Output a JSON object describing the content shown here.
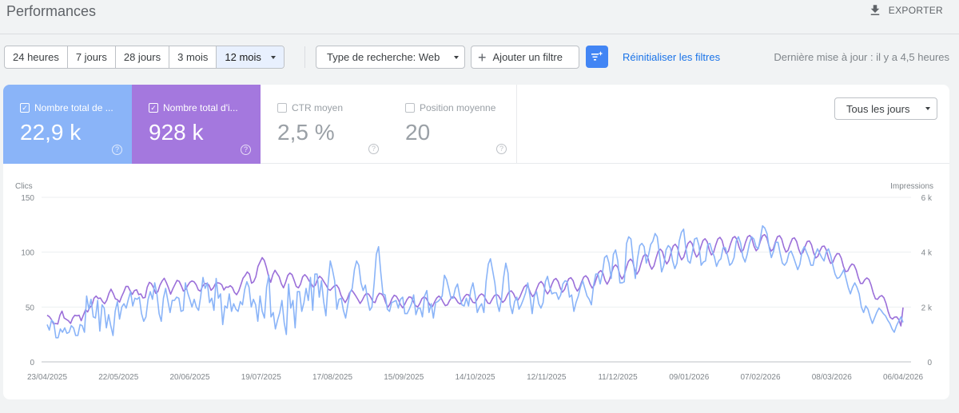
{
  "header": {
    "title": "Performances",
    "export_label": "EXPORTER"
  },
  "date_range": {
    "options": [
      "24 heures",
      "7 jours",
      "28 jours",
      "3 mois",
      "12 mois"
    ],
    "selected": "12 mois"
  },
  "filters": {
    "search_type": "Type de recherche: Web",
    "add_filter": "Ajouter un filtre",
    "reset": "Réinitialiser les filtres",
    "last_update": "Dernière mise à jour : il y a 4,5 heures"
  },
  "metrics": [
    {
      "label": "Nombre total de ...",
      "value": "22,9 k",
      "checked": true,
      "color": "#8ab4f8"
    },
    {
      "label": "Nombre total d'i...",
      "value": "928 k",
      "checked": true,
      "color": "#a478de"
    },
    {
      "label": "CTR moyen",
      "value": "2,5 %",
      "checked": false
    },
    {
      "label": "Position moyenne",
      "value": "20",
      "checked": false
    }
  ],
  "days_filter": "Tous les jours",
  "colors": {
    "clicks": "#8ab4f8",
    "impressions": "#9b6fd9",
    "accent": "#1a73e8"
  },
  "chart_data": {
    "type": "line",
    "left_axis_label": "Clics",
    "right_axis_label": "Impressions",
    "left_ticks": [
      "150",
      "100",
      "50",
      "0"
    ],
    "right_ticks": [
      "6 k",
      "4 k",
      "2 k",
      "0"
    ],
    "ylim_left": [
      0,
      150
    ],
    "ylim_right": [
      0,
      6000
    ],
    "x_ticks": [
      "23/04/2025",
      "22/05/2025",
      "20/06/2025",
      "19/07/2025",
      "17/08/2025",
      "15/09/2025",
      "14/10/2025",
      "12/11/2025",
      "11/12/2025",
      "09/01/2026",
      "07/02/2026",
      "08/03/2026",
      "06/04/2026"
    ],
    "series": [
      {
        "name": "Clics",
        "axis": "left",
        "color": "#8ab4f8",
        "values": [
          34,
          29,
          38,
          36,
          22,
          22,
          30,
          27,
          31,
          26,
          27,
          33,
          31,
          24,
          24,
          34,
          33,
          27,
          60,
          48,
          57,
          41,
          40,
          56,
          28,
          52,
          49,
          31,
          43,
          33,
          24,
          46,
          55,
          39,
          50,
          53,
          49,
          57,
          64,
          51,
          58,
          57,
          59,
          44,
          37,
          41,
          57,
          64,
          57,
          72,
          62,
          44,
          37,
          58,
          67,
          56,
          45,
          56,
          56,
          59,
          58,
          46,
          47,
          72,
          63,
          57,
          50,
          57,
          50,
          47,
          60,
          77,
          67,
          72,
          54,
          58,
          47,
          76,
          58,
          62,
          34,
          51,
          49,
          62,
          46,
          53,
          48,
          46,
          55,
          52,
          66,
          73,
          68,
          50,
          57,
          52,
          37,
          60,
          46,
          40,
          68,
          79,
          41,
          45,
          30,
          38,
          45,
          56,
          36,
          25,
          71,
          49,
          56,
          31,
          64,
          64,
          46,
          54,
          67,
          56,
          77,
          47,
          80,
          80,
          59,
          74,
          55,
          42,
          71,
          92,
          84,
          74,
          48,
          57,
          58,
          47,
          40,
          52,
          63,
          67,
          84,
          92,
          88,
          72,
          65,
          70,
          57,
          47,
          50,
          72,
          98,
          105,
          82,
          62,
          61,
          48,
          46,
          54,
          55,
          56,
          49,
          57,
          59,
          44,
          44,
          48,
          53,
          61,
          43,
          49,
          49,
          41,
          60,
          65,
          45,
          53,
          40,
          54,
          55,
          57,
          60,
          79,
          75,
          67,
          58,
          58,
          67,
          71,
          60,
          52,
          51,
          58,
          51,
          65,
          72,
          61,
          45,
          50,
          53,
          45,
          73,
          89,
          94,
          83,
          72,
          54,
          46,
          57,
          77,
          90,
          81,
          52,
          44,
          55,
          59,
          48,
          52,
          57,
          63,
          72,
          60,
          44,
          60,
          64,
          53,
          49,
          54,
          73,
          78,
          68,
          62,
          63,
          63,
          57,
          61,
          71,
          74,
          73,
          59,
          61,
          46,
          54,
          60,
          68,
          74,
          67,
          60,
          57,
          52,
          70,
          80,
          80,
          71,
          81,
          95,
          97,
          90,
          76,
          98,
          102,
          92,
          72,
          72,
          73,
          108,
          114,
          112,
          93,
          76,
          94,
          106,
          108,
          105,
          90,
          97,
          107,
          110,
          117,
          114,
          98,
          82,
          88,
          102,
          106,
          104,
          92,
          85,
          90,
          110,
          118,
          121,
          104,
          92,
          90,
          100,
          112,
          113,
          106,
          88,
          91,
          92,
          107,
          108,
          101,
          96,
          87,
          92,
          94,
          104,
          104,
          97,
          88,
          90,
          95,
          110,
          114,
          108,
          96,
          91,
          98,
          108,
          114,
          112,
          105,
          103,
          113,
          124,
          122,
          117,
          104,
          95,
          101,
          109,
          109,
          99,
          90,
          88,
          91,
          99,
          101,
          96,
          90,
          84,
          89,
          101,
          105,
          100,
          95,
          88,
          88,
          98,
          103,
          99,
          95,
          92,
          100,
          103,
          97,
          88,
          80,
          76,
          77,
          80,
          84,
          76,
          68,
          62,
          68,
          72,
          68,
          62,
          50,
          45,
          51,
          48,
          41,
          35,
          40,
          45,
          49,
          47,
          44,
          42,
          38,
          35,
          30,
          27,
          33,
          37,
          41,
          36
        ]
      },
      {
        "name": "Impressions",
        "axis": "right",
        "color": "#9b6fd9",
        "values": [
          1700,
          1650,
          1550,
          1380,
          1400,
          1380,
          1700,
          1850,
          1600,
          1550,
          1500,
          1400,
          1600,
          1700,
          1680,
          1700,
          1500,
          1700,
          1900,
          1820,
          1980,
          2050,
          2320,
          2400,
          2310,
          2330,
          2200,
          2120,
          2250,
          2500,
          2650,
          2500,
          2300,
          2270,
          2180,
          2380,
          2550,
          2750,
          2750,
          2590,
          2460,
          2600,
          2630,
          2450,
          2480,
          2330,
          2350,
          2720,
          2900,
          2850,
          2700,
          2500,
          2560,
          2800,
          2950,
          3050,
          2890,
          2690,
          2470,
          2660,
          2820,
          2970,
          2940,
          2780,
          2580,
          2640,
          2780,
          2900,
          2950,
          2920,
          2810,
          2620,
          2580,
          2760,
          2850,
          2860,
          2800,
          2610,
          2690,
          2850,
          2880,
          2870,
          2810,
          2620,
          2730,
          2720,
          2780,
          2710,
          2530,
          2450,
          2590,
          2810,
          3050,
          3150,
          3280,
          3200,
          2870,
          2920,
          3100,
          3480,
          3640,
          3800,
          3700,
          3440,
          3120,
          2900,
          3180,
          3340,
          3220,
          3100,
          2850,
          2700,
          2900,
          3150,
          3240,
          3180,
          2980,
          2750,
          2700,
          2830,
          3100,
          3180,
          3100,
          2960,
          2850,
          2730,
          2800,
          3020,
          3120,
          3050,
          2920,
          2800,
          2650,
          2610,
          2700,
          2780,
          2800,
          2680,
          2430,
          2290,
          2160,
          2300,
          2510,
          2620,
          2520,
          2400,
          2270,
          2130,
          2250,
          2410,
          2500,
          2470,
          2350,
          2190,
          2160,
          2370,
          2500,
          2480,
          2390,
          2160,
          1990,
          2110,
          2310,
          2430,
          2390,
          2260,
          2080,
          1970,
          2110,
          2270,
          2370,
          2350,
          2200,
          2050,
          2000,
          2120,
          2300,
          2370,
          2320,
          2180,
          2040,
          2020,
          2190,
          2330,
          2400,
          2330,
          2180,
          2050,
          2080,
          2230,
          2360,
          2380,
          2290,
          2160,
          2110,
          2240,
          2380,
          2460,
          2440,
          2300,
          2170,
          2150,
          2290,
          2420,
          2480,
          2430,
          2280,
          2140,
          2130,
          2280,
          2410,
          2460,
          2410,
          2270,
          2170,
          2250,
          2420,
          2560,
          2590,
          2490,
          2320,
          2240,
          2360,
          2550,
          2730,
          2800,
          2720,
          2520,
          2380,
          2470,
          2680,
          2860,
          2930,
          2830,
          2610,
          2480,
          2590,
          2820,
          2990,
          3040,
          2930,
          2690,
          2540,
          2640,
          2860,
          3030,
          3070,
          2960,
          2720,
          2580,
          2690,
          2910,
          3090,
          3140,
          3050,
          2830,
          2690,
          2800,
          3050,
          3260,
          3330,
          3240,
          2980,
          2830,
          2970,
          3230,
          3460,
          3540,
          3450,
          3170,
          3020,
          3150,
          3430,
          3660,
          3750,
          3660,
          3360,
          3200,
          3330,
          3610,
          3850,
          3930,
          3840,
          3540,
          3380,
          3500,
          3790,
          4030,
          4110,
          4020,
          3730,
          3570,
          3690,
          3980,
          4220,
          4290,
          4180,
          3890,
          3720,
          3820,
          4100,
          4320,
          4400,
          4300,
          4000,
          3820,
          3920,
          4190,
          4420,
          4490,
          4380,
          4080,
          3900,
          3990,
          4260,
          4480,
          4540,
          4430,
          4130,
          3950,
          4040,
          4310,
          4520,
          4570,
          4460,
          4180,
          4000,
          4090,
          4360,
          4560,
          4610,
          4500,
          4220,
          4050,
          4140,
          4400,
          4600,
          4640,
          4520,
          4230,
          4040,
          4110,
          4360,
          4560,
          4600,
          4480,
          4190,
          4000,
          4070,
          4300,
          4490,
          4520,
          4390,
          4100,
          3920,
          3990,
          4210,
          4390,
          4410,
          4270,
          3980,
          3790,
          3850,
          4060,
          4210,
          4220,
          4070,
          3780,
          3590,
          3630,
          3820,
          3950,
          3940,
          3780,
          3480,
          3290,
          3310,
          3470,
          3570,
          3530,
          3350,
          3060,
          2860,
          2860,
          2990,
          3060,
          3000,
          2800,
          2510,
          2300,
          2280,
          2380,
          2420,
          2340,
          2130,
          1830,
          1620,
          1560,
          1630,
          1640,
          1540,
          1310,
          1980
        ]
      }
    ]
  }
}
